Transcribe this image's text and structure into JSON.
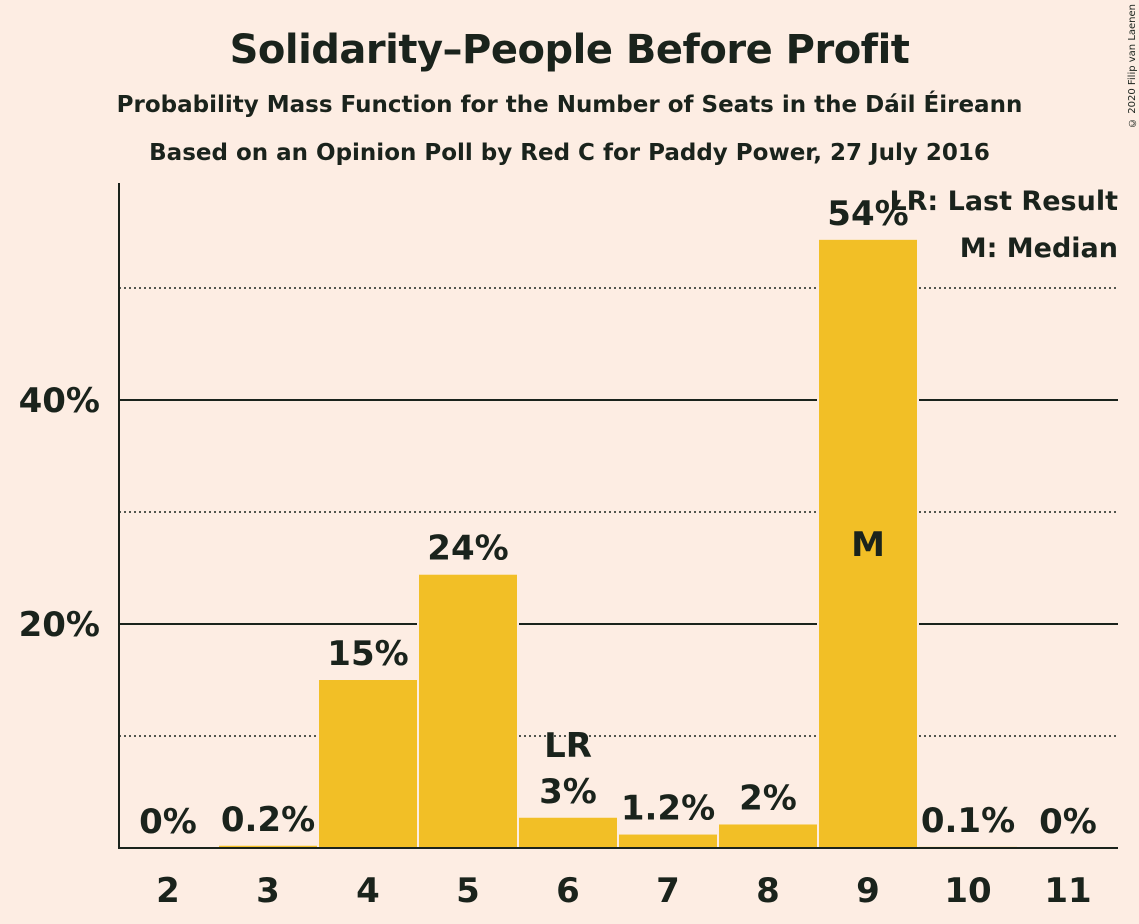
{
  "header": {
    "title": "Solidarity–People Before Profit",
    "subtitle": "Probability Mass Function for the Number of Seats in the Dáil Éireann",
    "subtitle2": "Based on an Opinion Poll by Red C for Paddy Power, 27 July 2016",
    "copyright": "© 2020 Filip van Laenen"
  },
  "colors": {
    "background": "#FDEDE3",
    "bar": "#F2BF26",
    "text": "#1A231C",
    "median_label": "#FDEDE3"
  },
  "chart_data": {
    "type": "bar",
    "title": "Solidarity–People Before Profit",
    "xlabel": "",
    "ylabel": "",
    "categories": [
      "2",
      "3",
      "4",
      "5",
      "6",
      "7",
      "8",
      "9",
      "10",
      "11"
    ],
    "values": [
      0,
      0.2,
      15,
      24.4,
      2.7,
      1.2,
      2.1,
      54.3,
      0.1,
      0
    ],
    "value_labels": [
      "0%",
      "0.2%",
      "15%",
      "24%",
      "3%",
      "1.2%",
      "2%",
      "54%",
      "0.1%",
      "0%"
    ],
    "ylim": [
      0,
      59.5
    ],
    "y_ticks_major": [
      20,
      40
    ],
    "y_tick_labels": [
      "20%",
      "40%"
    ],
    "y_ticks_minor": [
      10,
      30,
      50
    ],
    "last_result_category": "6",
    "last_result_marker": "LR",
    "median_category": "9",
    "median_marker": "M",
    "legend": [
      "LR: Last Result",
      "M: Median"
    ],
    "legend_position": "top-right",
    "grid": true
  }
}
